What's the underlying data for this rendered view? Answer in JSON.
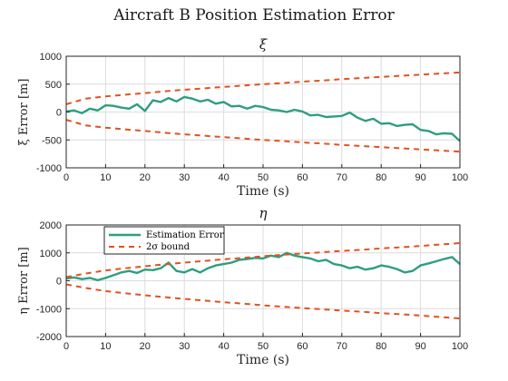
{
  "figure": {
    "title": "Aircraft B Position Estimation Error"
  },
  "colors": {
    "error": "#2e9e80",
    "bound": "#e0521f"
  },
  "chart_data": [
    {
      "type": "line",
      "title": "ξ",
      "xlabel": "Time (s)",
      "ylabel": "ξ Error [m]",
      "xlim": [
        0,
        100
      ],
      "ylim": [
        -1000,
        1000
      ],
      "xticks": [
        0,
        10,
        20,
        30,
        40,
        50,
        60,
        70,
        80,
        90,
        100
      ],
      "yticks": [
        -1000,
        -500,
        0,
        500,
        1000
      ],
      "grid": true,
      "series": [
        {
          "name": "Estimation Error",
          "x": [
            0,
            2,
            4,
            6,
            8,
            10,
            12,
            14,
            16,
            18,
            20,
            22,
            24,
            26,
            28,
            30,
            32,
            34,
            36,
            38,
            40,
            42,
            44,
            46,
            48,
            50,
            52,
            54,
            56,
            58,
            60,
            62,
            64,
            66,
            68,
            70,
            72,
            74,
            76,
            78,
            80,
            82,
            84,
            86,
            88,
            90,
            92,
            94,
            96,
            98,
            100
          ],
          "y": [
            10,
            30,
            -20,
            60,
            30,
            120,
            110,
            80,
            60,
            140,
            20,
            210,
            180,
            250,
            190,
            270,
            240,
            190,
            220,
            150,
            180,
            100,
            110,
            60,
            110,
            90,
            40,
            30,
            0,
            40,
            10,
            -60,
            -50,
            -90,
            -80,
            -70,
            -10,
            -100,
            -160,
            -120,
            -210,
            -200,
            -250,
            -230,
            -220,
            -320,
            -340,
            -400,
            -380,
            -390,
            -520
          ]
        },
        {
          "name": "2σ bound",
          "x": [
            0,
            5,
            10,
            15,
            20,
            25,
            30,
            35,
            40,
            45,
            50,
            55,
            60,
            65,
            70,
            75,
            80,
            85,
            90,
            95,
            100
          ],
          "y": [
            140,
            240,
            280,
            310,
            340,
            370,
            400,
            425,
            450,
            475,
            500,
            520,
            545,
            565,
            590,
            610,
            630,
            650,
            670,
            690,
            710
          ]
        }
      ]
    },
    {
      "type": "line",
      "title": "η",
      "xlabel": "Time (s)",
      "ylabel": "η Error [m]",
      "xlim": [
        0,
        100
      ],
      "ylim": [
        -2000,
        2000
      ],
      "xticks": [
        0,
        10,
        20,
        30,
        40,
        50,
        60,
        70,
        80,
        90,
        100
      ],
      "yticks": [
        -2000,
        -1000,
        0,
        1000,
        2000
      ],
      "grid": true,
      "legend": "top-left",
      "series": [
        {
          "name": "Estimation Error",
          "x": [
            0,
            2,
            4,
            6,
            8,
            10,
            12,
            14,
            16,
            18,
            20,
            22,
            24,
            26,
            28,
            30,
            32,
            34,
            36,
            38,
            40,
            42,
            44,
            46,
            48,
            50,
            52,
            54,
            56,
            58,
            60,
            62,
            64,
            66,
            68,
            70,
            72,
            74,
            76,
            78,
            80,
            82,
            84,
            86,
            88,
            90,
            92,
            94,
            96,
            98,
            100
          ],
          "y": [
            80,
            120,
            60,
            100,
            20,
            100,
            200,
            300,
            350,
            280,
            400,
            380,
            450,
            650,
            350,
            300,
            420,
            300,
            450,
            550,
            600,
            650,
            750,
            780,
            820,
            800,
            900,
            850,
            1000,
            900,
            850,
            800,
            700,
            750,
            600,
            550,
            450,
            500,
            400,
            450,
            550,
            500,
            420,
            300,
            350,
            550,
            620,
            700,
            780,
            850,
            600
          ]
        },
        {
          "name": "2σ bound",
          "x": [
            0,
            5,
            10,
            15,
            20,
            25,
            30,
            35,
            40,
            45,
            50,
            55,
            60,
            65,
            70,
            75,
            80,
            85,
            90,
            95,
            100
          ],
          "y": [
            130,
            260,
            370,
            450,
            520,
            590,
            650,
            710,
            770,
            820,
            880,
            930,
            980,
            1020,
            1070,
            1110,
            1160,
            1200,
            1250,
            1300,
            1350
          ]
        }
      ]
    }
  ]
}
